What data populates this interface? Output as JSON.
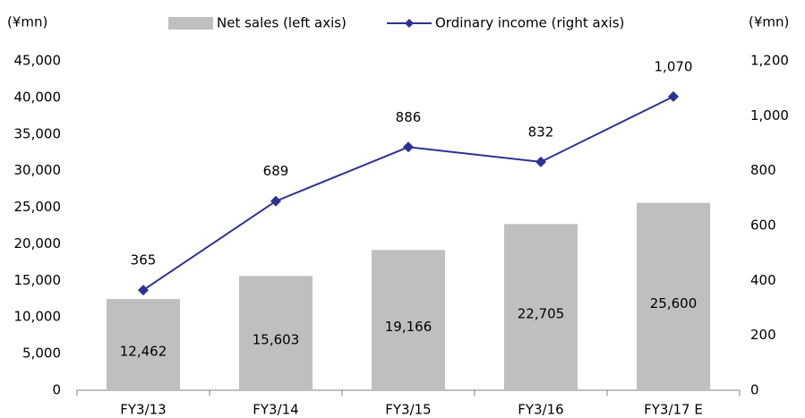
{
  "chart_data": {
    "type": "bar",
    "categories": [
      "FY3/13",
      "FY3/14",
      "FY3/15",
      "FY3/16",
      "FY3/17 E"
    ],
    "y_unit": "(¥mn)",
    "y2_unit": "(¥mn)",
    "series": [
      {
        "name": "Net sales (left axis)",
        "type": "bar",
        "color": "#bfbfbf",
        "values": [
          12462,
          15603,
          19166,
          22705,
          25600
        ],
        "value_labels": [
          "12,462",
          "15,603",
          "19,166",
          "22,705",
          "25,600"
        ]
      },
      {
        "name": "Ordinary income (right axis)",
        "type": "line",
        "axis": "y2",
        "color": "#2e3192",
        "values": [
          365,
          689,
          886,
          832,
          1070
        ],
        "value_labels": [
          "365",
          "689",
          "886",
          "832",
          "1,070"
        ]
      }
    ],
    "ylim": [
      0,
      45000
    ],
    "yticks": [
      0,
      {
        "value": 5000,
        "label": "5,000"
      },
      {
        "value": 10000,
        "label": "10,000"
      },
      {
        "value": 15000,
        "label": "15,000"
      },
      {
        "value": 20000,
        "label": "20,000"
      },
      {
        "value": 25000,
        "label": "25,000"
      },
      {
        "value": 30000,
        "label": "30,000"
      },
      {
        "value": 35000,
        "label": "35,000"
      },
      {
        "value": 40000,
        "label": "40,000"
      },
      {
        "value": 45000,
        "label": "45,000"
      }
    ],
    "y2lim": [
      0,
      1200
    ],
    "y2ticks": [
      0,
      200,
      400,
      600,
      800,
      {
        "value": 1000,
        "label": "1,000"
      },
      {
        "value": 1200,
        "label": "1,200"
      }
    ],
    "grid": false,
    "legend": "top"
  }
}
